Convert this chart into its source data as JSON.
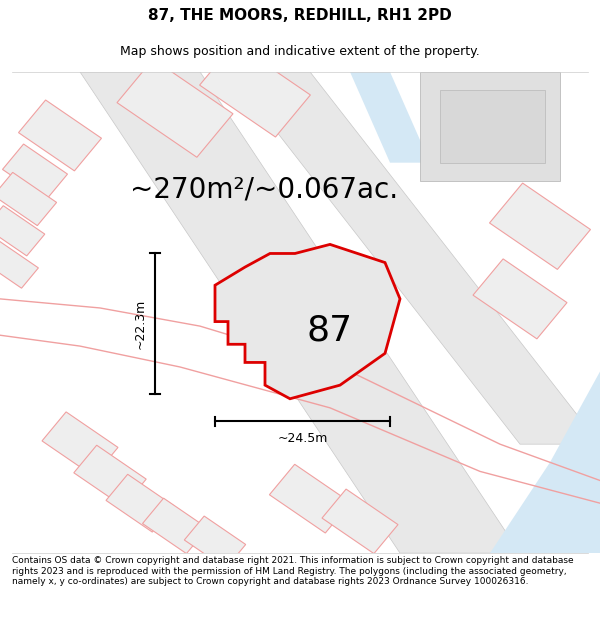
{
  "title": "87, THE MOORS, REDHILL, RH1 2PD",
  "subtitle": "Map shows position and indicative extent of the property.",
  "area_text": "~270m²/~0.067ac.",
  "label_87": "87",
  "dim_width": "~24.5m",
  "dim_height": "~22.3m",
  "footer": "Contains OS data © Crown copyright and database right 2021. This information is subject to Crown copyright and database rights 2023 and is reproduced with the permission of HM Land Registry. The polygons (including the associated geometry, namely x, y co-ordinates) are subject to Crown copyright and database rights 2023 Ordnance Survey 100026316.",
  "bg_color": "#ffffff",
  "plot_fill": "#e8e8e8",
  "plot_edge": "#dd0000",
  "plot_edge_width": 2.0,
  "neighbor_edge": "#f0a0a0",
  "neighbor_fill": "#eeeeee",
  "road_fill": "#e8e8e8",
  "road_edge": "#cccccc",
  "water_color": "#d4e8f5",
  "title_fontsize": 11,
  "subtitle_fontsize": 9,
  "area_fontsize": 20,
  "label_fontsize": 26,
  "dim_fontsize": 9,
  "footer_fontsize": 6.5,
  "figsize": [
    6.0,
    6.25
  ],
  "dpi": 100
}
